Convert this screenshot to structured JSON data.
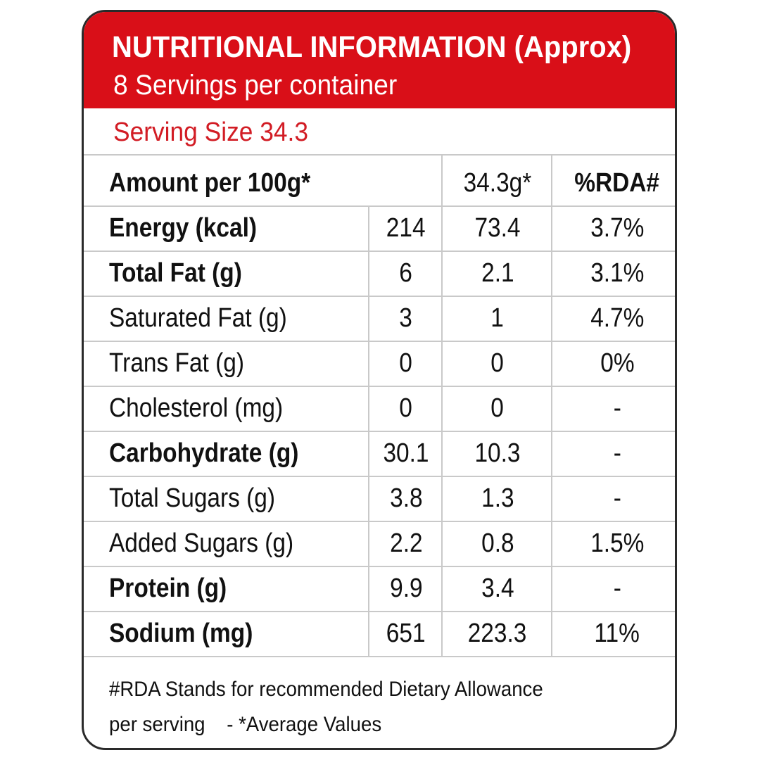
{
  "header": {
    "title": "NUTRITIONAL INFORMATION (Approx)",
    "subtitle": "8 Servings per container",
    "background_color": "#d90f18"
  },
  "serving_size": "Serving Size 34.3",
  "columns": {
    "amount_label": "Amount per 100g*",
    "serving_label": "34.3g*",
    "rda_label": "%RDA#"
  },
  "rows": [
    {
      "label": "Energy (kcal)",
      "per_100g": "214",
      "per_serving": "73.4",
      "rda": "3.7%",
      "bold": true
    },
    {
      "label": "Total Fat (g)",
      "per_100g": "6",
      "per_serving": "2.1",
      "rda": "3.1%",
      "bold": true
    },
    {
      "label": "Saturated Fat (g)",
      "per_100g": "3",
      "per_serving": "1",
      "rda": "4.7%",
      "bold": false
    },
    {
      "label": "Trans Fat (g)",
      "per_100g": "0",
      "per_serving": "0",
      "rda": "0%",
      "bold": false
    },
    {
      "label": "Cholesterol (mg)",
      "per_100g": "0",
      "per_serving": "0",
      "rda": "-",
      "bold": false
    },
    {
      "label": "Carbohydrate (g)",
      "per_100g": "30.1",
      "per_serving": "10.3",
      "rda": "-",
      "bold": true
    },
    {
      "label": "Total Sugars (g)",
      "per_100g": "3.8",
      "per_serving": "1.3",
      "rda": "-",
      "bold": false
    },
    {
      "label": "Added Sugars (g)",
      "per_100g": "2.2",
      "per_serving": "0.8",
      "rda": "1.5%",
      "bold": false
    },
    {
      "label": "Protein (g)",
      "per_100g": "9.9",
      "per_serving": "3.4",
      "rda": "-",
      "bold": true
    },
    {
      "label": "Sodium (mg)",
      "per_100g": "651",
      "per_serving": "223.3",
      "rda": "11%",
      "bold": true
    }
  ],
  "footer": {
    "line1": "#RDA Stands for recommended Dietary Allowance",
    "line2": "per serving    - *Average Values"
  }
}
